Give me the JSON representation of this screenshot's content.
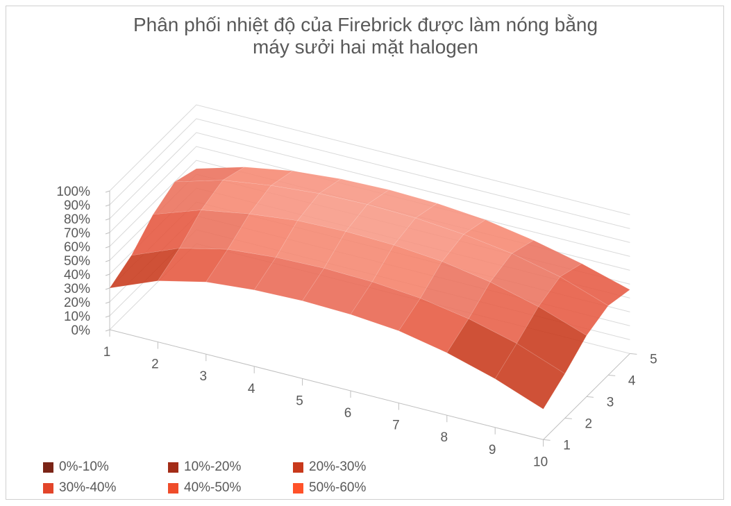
{
  "chart_data": {
    "type": "surface",
    "title_lines": [
      "Phân phối nhiệt độ của Firebrick được làm nóng bằng",
      "máy sưởi hai mặt halogen"
    ],
    "x_categories": [
      "1",
      "2",
      "3",
      "4",
      "5",
      "6",
      "7",
      "8",
      "9",
      "10"
    ],
    "depth_categories": [
      "1",
      "2",
      "3",
      "4",
      "5"
    ],
    "z_ticks": [
      "0%",
      "10%",
      "20%",
      "30%",
      "40%",
      "50%",
      "60%",
      "70%",
      "80%",
      "90%",
      "100%"
    ],
    "zlim": [
      0,
      100
    ],
    "legend_position": "bottom",
    "legend": [
      {
        "label": "0%-10%",
        "color": "#7a2416"
      },
      {
        "label": "10%-20%",
        "color": "#a32c17"
      },
      {
        "label": "20%-30%",
        "color": "#c8391b"
      },
      {
        "label": "30%-40%",
        "color": "#e2452a"
      },
      {
        "label": "40%-50%",
        "color": "#ef4c2a"
      },
      {
        "label": "50%-60%",
        "color": "#ff5229"
      }
    ],
    "series": [
      {
        "name": "1",
        "values": [
          30,
          44,
          52,
          55,
          56,
          55,
          52,
          45,
          35,
          22
        ]
      },
      {
        "name": "2",
        "values": [
          38,
          52,
          60,
          63,
          64,
          63,
          60,
          54,
          45,
          32
        ]
      },
      {
        "name": "3",
        "values": [
          52,
          64,
          70,
          74,
          75,
          74,
          71,
          65,
          56,
          44
        ]
      },
      {
        "name": "4",
        "values": [
          60,
          70,
          75,
          78,
          79,
          78,
          75,
          70,
          62,
          50
        ]
      },
      {
        "name": "5",
        "values": [
          54,
          64,
          70,
          73,
          74,
          73,
          70,
          64,
          56,
          46
        ]
      }
    ]
  }
}
